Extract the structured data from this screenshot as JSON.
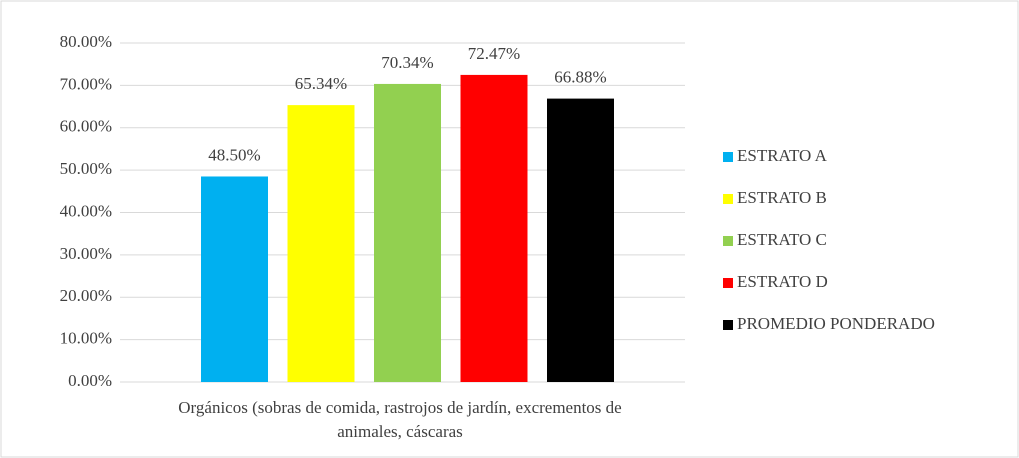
{
  "chart_data": {
    "type": "bar",
    "categories": [
      "Orgánicos (sobras de comida, rastrojos de jardín, excrementos de animales, cáscaras"
    ],
    "series": [
      {
        "name": "ESTRATO A",
        "color": "#00B0F0",
        "values": [
          48.5
        ],
        "value_labels": [
          "48.50%"
        ]
      },
      {
        "name": "ESTRATO B",
        "color": "#FFFF00",
        "values": [
          65.34
        ],
        "value_labels": [
          "65.34%"
        ]
      },
      {
        "name": "ESTRATO C",
        "color": "#92D050",
        "values": [
          70.34
        ],
        "value_labels": [
          "70.34%"
        ]
      },
      {
        "name": "ESTRATO D",
        "color": "#FF0000",
        "values": [
          72.47
        ],
        "value_labels": [
          "72.47%"
        ]
      },
      {
        "name": "PROMEDIO PONDERADO",
        "color": "#000000",
        "values": [
          66.88
        ],
        "value_labels": [
          "66.88%"
        ]
      }
    ],
    "ylim": [
      0,
      80
    ],
    "yticks": [
      {
        "value": 0,
        "label": "0.00%"
      },
      {
        "value": 10,
        "label": "10.00%"
      },
      {
        "value": 20,
        "label": "20.00%"
      },
      {
        "value": 30,
        "label": "30.00%"
      },
      {
        "value": 40,
        "label": "40.00%"
      },
      {
        "value": 50,
        "label": "50.00%"
      },
      {
        "value": 60,
        "label": "60.00%"
      },
      {
        "value": 70,
        "label": "70.00%"
      },
      {
        "value": 80,
        "label": "80.00%"
      }
    ],
    "grid": true,
    "legend": "right"
  }
}
